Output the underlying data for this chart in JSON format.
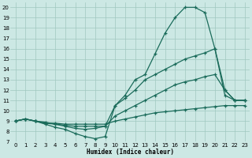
{
  "xlabel": "Humidex (Indice chaleur)",
  "background_color": "#cce8e4",
  "grid_color": "#a0c8c0",
  "line_color": "#1a6b5a",
  "xlim": [
    -0.5,
    23.5
  ],
  "ylim": [
    7,
    20.5
  ],
  "yticks": [
    7,
    8,
    9,
    10,
    11,
    12,
    13,
    14,
    15,
    16,
    17,
    18,
    19,
    20
  ],
  "xticks": [
    0,
    1,
    2,
    3,
    4,
    5,
    6,
    7,
    8,
    9,
    10,
    11,
    12,
    13,
    14,
    15,
    16,
    17,
    18,
    19,
    20,
    21,
    22,
    23
  ],
  "series": [
    {
      "x": [
        0,
        1,
        2,
        3,
        4,
        5,
        6,
        7,
        8,
        9,
        10,
        11,
        12,
        13,
        14,
        15,
        16,
        17,
        18,
        19,
        20,
        21,
        22,
        23
      ],
      "y": [
        9.0,
        9.2,
        9.0,
        8.8,
        8.8,
        8.7,
        8.7,
        8.7,
        8.7,
        8.7,
        9.0,
        9.2,
        9.4,
        9.6,
        9.8,
        9.9,
        10.0,
        10.1,
        10.2,
        10.3,
        10.4,
        10.5,
        10.5,
        10.5
      ]
    },
    {
      "x": [
        0,
        1,
        2,
        3,
        4,
        5,
        6,
        7,
        8,
        9,
        10,
        11,
        12,
        13,
        14,
        15,
        16,
        17,
        18,
        19,
        20,
        21,
        22,
        23
      ],
      "y": [
        9.0,
        9.2,
        9.0,
        8.8,
        8.7,
        8.6,
        8.5,
        8.5,
        8.5,
        8.5,
        9.5,
        10.0,
        10.5,
        11.0,
        11.5,
        12.0,
        12.5,
        12.8,
        13.0,
        13.3,
        13.5,
        12.0,
        11.0,
        11.0
      ]
    },
    {
      "x": [
        0,
        1,
        2,
        3,
        4,
        5,
        6,
        7,
        8,
        9,
        10,
        11,
        12,
        13,
        14,
        15,
        16,
        17,
        18,
        19,
        20,
        21,
        22,
        23
      ],
      "y": [
        9.0,
        9.2,
        9.0,
        8.9,
        8.7,
        8.5,
        8.3,
        8.2,
        8.3,
        8.5,
        10.5,
        11.2,
        12.0,
        13.0,
        13.5,
        14.0,
        14.5,
        15.0,
        15.3,
        15.6,
        16.0,
        12.0,
        11.0,
        11.0
      ]
    },
    {
      "x": [
        0,
        1,
        2,
        3,
        4,
        5,
        6,
        7,
        8,
        9,
        10,
        11,
        12,
        13,
        14,
        15,
        16,
        17,
        18,
        19,
        20,
        21,
        22,
        23
      ],
      "y": [
        9.0,
        9.2,
        9.0,
        8.7,
        8.4,
        8.2,
        7.8,
        7.5,
        7.3,
        7.5,
        10.5,
        11.5,
        13.0,
        13.5,
        15.5,
        17.5,
        19.0,
        20.0,
        20.0,
        19.5,
        16.0,
        11.5,
        11.0,
        11.0
      ]
    }
  ]
}
